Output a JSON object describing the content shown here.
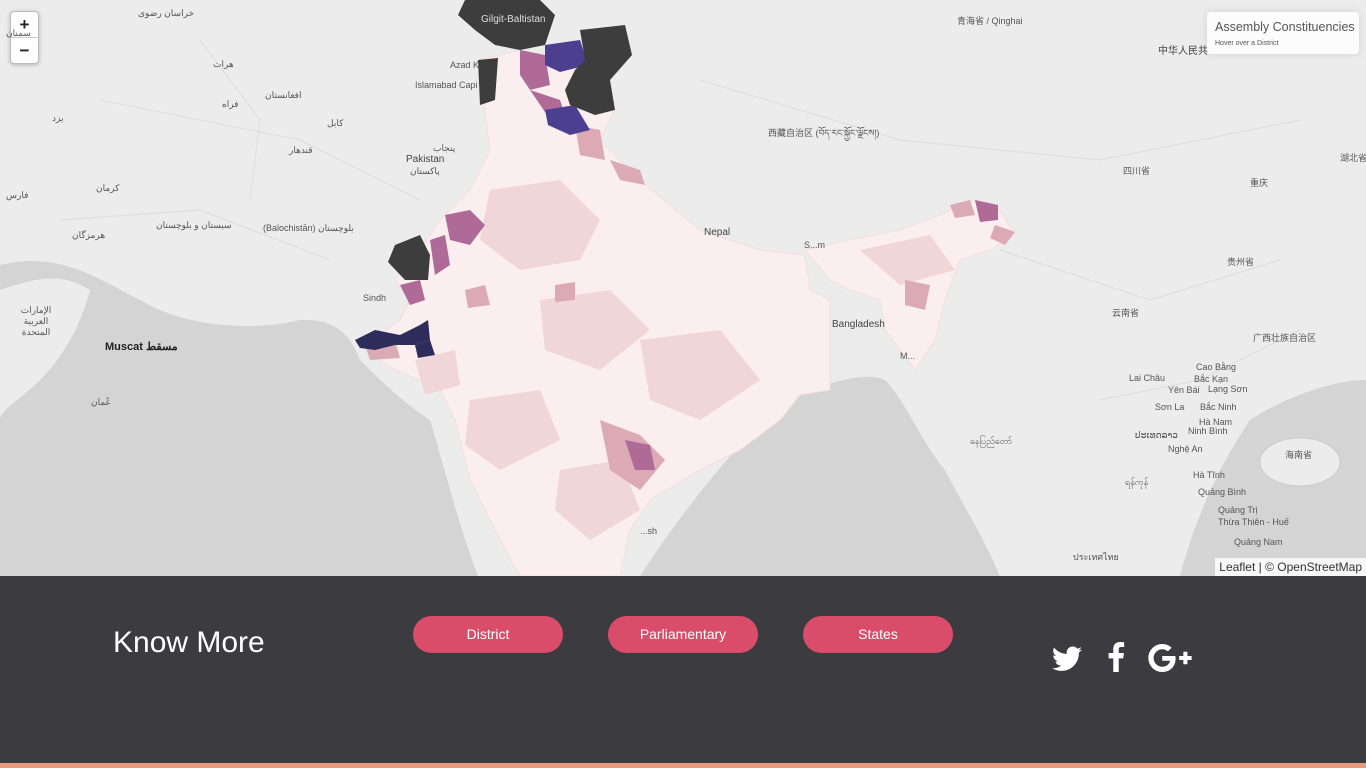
{
  "map": {
    "zoom_in": "+",
    "zoom_out": "−",
    "places": [
      {
        "text": "Gilgit-Baltistan"
      },
      {
        "text": "Pakistan"
      },
      {
        "text": "پاکستان"
      },
      {
        "text": "Islamabad Capi"
      },
      {
        "text": "Azad K"
      },
      {
        "text": "Nepal"
      },
      {
        "text": "Bangladesh"
      },
      {
        "text": "Muscat مسقط"
      },
      {
        "text": "Sindh"
      },
      {
        "text": "(Balochistān) بلوچستان"
      },
      {
        "text": "青海省 / Qinghai"
      },
      {
        "text": "中华人民共"
      },
      {
        "text": "西藏自治区 (བོད་རང་སྐྱོང་ལྗོངས།)"
      },
      {
        "text": "四川省"
      },
      {
        "text": "重庆"
      },
      {
        "text": "湖北省"
      },
      {
        "text": "贵州省"
      },
      {
        "text": "云南省"
      },
      {
        "text": "广西壮族自治区"
      },
      {
        "text": "Lai Châu"
      },
      {
        "text": "Cao Bằng"
      },
      {
        "text": "Bắc Kạn"
      },
      {
        "text": "Lạng Sơn"
      },
      {
        "text": "Yên Bái"
      },
      {
        "text": "Sơn La"
      },
      {
        "text": "Bắc Ninh"
      },
      {
        "text": "Hà Nam"
      },
      {
        "text": "Ninh Bình"
      },
      {
        "text": "ປະເທດລາວ"
      },
      {
        "text": "Nghệ An"
      },
      {
        "text": "Hà Tĩnh"
      },
      {
        "text": "Quảng Bình"
      },
      {
        "text": "Quảng Trị"
      },
      {
        "text": "Thừa Thiên - Huế"
      },
      {
        "text": "Quảng Nam"
      },
      {
        "text": "海南省"
      },
      {
        "text": "ประเทศไทย"
      },
      {
        "text": "နေပြည်တော်"
      },
      {
        "text": "ရန်ကုန်"
      },
      {
        "text": "عُمان"
      },
      {
        "text": "خراسان رضوی"
      },
      {
        "text": "هرات"
      },
      {
        "text": "فراه"
      },
      {
        "text": "کرمان"
      },
      {
        "text": "سیستان و بلوچستان"
      },
      {
        "text": "هرمزگان"
      },
      {
        "text": "افغانستان"
      },
      {
        "text": "کابل"
      },
      {
        "text": "قندهار"
      },
      {
        "text": "سمنان"
      },
      {
        "text": "یزد"
      },
      {
        "text": "فارس"
      },
      {
        "text": "پنجاب"
      },
      {
        "text": "الإمارات العربية المتحدة"
      },
      {
        "text": "M..."
      },
      {
        "text": "S...m"
      },
      {
        "text": "...sh"
      }
    ],
    "colors": {
      "background": "#ececec",
      "sea": "#d4d4d4",
      "lightest": "#fbeeee",
      "light": "#f0d6d6",
      "medium": "#dcaab4",
      "mauve": "#b06a98",
      "purple": "#4c3f8f",
      "navy": "#2d2c5a",
      "nodata": "#3d3d3d"
    }
  },
  "legend": {
    "title": "Assembly Constituencies",
    "subtitle": "Hover over a District"
  },
  "attribution": {
    "leaflet": "Leaflet",
    "separator": "| ©",
    "osm": "OpenStreetMap"
  },
  "footer": {
    "heading": "Know More",
    "buttons": [
      "District",
      "Parliamentary",
      "States"
    ],
    "social": [
      "twitter-icon",
      "facebook-icon",
      "google-plus-icon"
    ]
  }
}
